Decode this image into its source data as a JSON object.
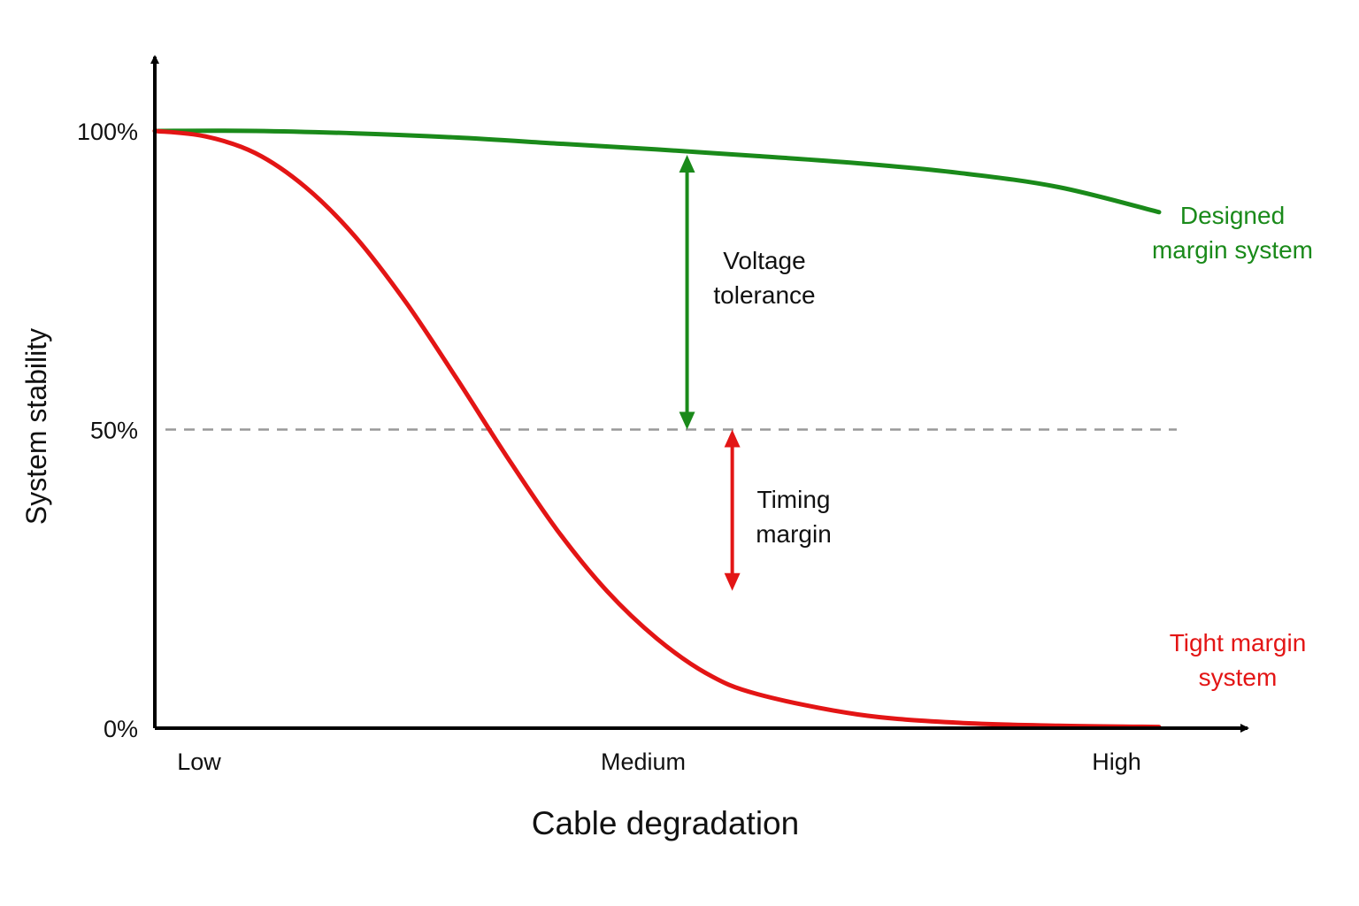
{
  "chart_data": {
    "type": "line",
    "xlabel": "Cable degradation",
    "ylabel": "System stability",
    "categories": [
      "Low",
      "Medium",
      "High"
    ],
    "x_range": [
      0,
      1
    ],
    "ylim": [
      0,
      100
    ],
    "y_ticks": [
      {
        "value": 0,
        "label": "0%"
      },
      {
        "value": 50,
        "label": "50%"
      },
      {
        "value": 100,
        "label": "100%"
      }
    ],
    "reference_line": {
      "value": 50,
      "style": "dashed",
      "color": "#999999"
    },
    "grid": false,
    "series": [
      {
        "name": "Designed margin system",
        "label_lines": [
          "Designed",
          "margin system"
        ],
        "color": "#1a8a1a",
        "points": [
          [
            0.0,
            100
          ],
          [
            0.1,
            100
          ],
          [
            0.2,
            99.6
          ],
          [
            0.3,
            98.9
          ],
          [
            0.4,
            97.9
          ],
          [
            0.5,
            96.9
          ],
          [
            0.6,
            95.8
          ],
          [
            0.7,
            94.6
          ],
          [
            0.8,
            93.0
          ],
          [
            0.9,
            90.6
          ],
          [
            1.0,
            86.4
          ]
        ]
      },
      {
        "name": "Tight margin system",
        "label_lines": [
          "Tight margin",
          "system"
        ],
        "color": "#e31515",
        "points": [
          [
            0.0,
            100
          ],
          [
            0.05,
            99.1
          ],
          [
            0.1,
            96.3
          ],
          [
            0.15,
            90.6
          ],
          [
            0.2,
            82.2
          ],
          [
            0.25,
            71.3
          ],
          [
            0.3,
            58.7
          ],
          [
            0.35,
            45.6
          ],
          [
            0.4,
            33.3
          ],
          [
            0.45,
            23.0
          ],
          [
            0.5,
            15.0
          ],
          [
            0.55,
            9.1
          ],
          [
            0.6,
            5.7
          ],
          [
            0.7,
            2.3
          ],
          [
            0.8,
            0.9
          ],
          [
            0.9,
            0.4
          ],
          [
            1.0,
            0.2
          ]
        ]
      }
    ],
    "annotations": [
      {
        "id": "voltage",
        "text_lines": [
          "Voltage",
          "tolerance"
        ],
        "color": "#1a8a1a",
        "x": 0.53,
        "from": 96,
        "to": 50
      },
      {
        "id": "timing",
        "text_lines": [
          "Timing",
          "margin"
        ],
        "color": "#e31515",
        "x": 0.575,
        "from": 50,
        "to": 23
      }
    ]
  }
}
